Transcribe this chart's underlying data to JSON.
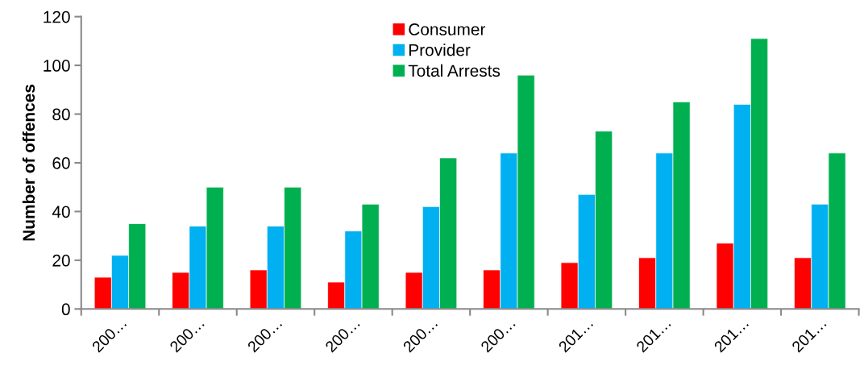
{
  "chart_data": {
    "type": "bar",
    "ylabel": "Number of offences",
    "categories": [
      "200…",
      "200…",
      "200…",
      "200…",
      "200…",
      "200…",
      "201…",
      "201…",
      "201…",
      "201…"
    ],
    "series": [
      {
        "name": "Consumer",
        "color": "#ff0000",
        "values": [
          13,
          15,
          16,
          11,
          15,
          16,
          19,
          21,
          27,
          21
        ]
      },
      {
        "name": "Provider",
        "color": "#00b0f0",
        "values": [
          22,
          34,
          34,
          32,
          42,
          64,
          47,
          64,
          84,
          43
        ]
      },
      {
        "name": "Total Arrests",
        "color": "#00b050",
        "values": [
          35,
          50,
          50,
          43,
          62,
          96,
          73,
          85,
          111,
          64
        ]
      }
    ],
    "ylim": [
      0,
      120
    ],
    "yticks": [
      0,
      20,
      40,
      60,
      80,
      100,
      120
    ],
    "grid": false,
    "legend": "top"
  }
}
